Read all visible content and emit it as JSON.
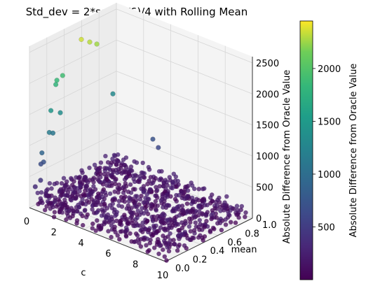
{
  "chart_data": {
    "type": "scatter",
    "subtype": "3d-scatter",
    "title": "Std_dev = 2*sqrt(1/6)/4 with Rolling Mean",
    "xlabel": "c",
    "ylabel": "mean",
    "zlabel": "Absolute Difference from Oracle Value",
    "xlim": [
      0,
      10
    ],
    "ylim": [
      0,
      1
    ],
    "zlim": [
      0,
      2600
    ],
    "x_ticks": [
      "0",
      "2",
      "4",
      "6",
      "8",
      "10"
    ],
    "y_ticks": [
      "0.0",
      "0.2",
      "0.4",
      "0.6",
      "0.8",
      "1.0"
    ],
    "z_ticks": [
      "0",
      "500",
      "1000",
      "1500",
      "2000",
      "2500"
    ],
    "grid": true,
    "colormap": "viridis",
    "colorbar": {
      "label": "Absolute Difference from Oracle Value",
      "min": 0,
      "max": 2450,
      "ticks": [
        "500",
        "1000",
        "1500",
        "2000"
      ]
    },
    "bulk_surface": {
      "description": "dense low-error points over full c x mean domain",
      "x_range": [
        0,
        10
      ],
      "y_range": [
        0,
        1
      ],
      "z_range": [
        0,
        250
      ]
    },
    "outliers": [
      {
        "x": 0.3,
        "y": 0.55,
        "z": 2350
      },
      {
        "x": 0.6,
        "y": 0.6,
        "z": 2300
      },
      {
        "x": 0.8,
        "y": 0.65,
        "z": 2250
      },
      {
        "x": 0.1,
        "y": 0.3,
        "z": 1850
      },
      {
        "x": 0.2,
        "y": 0.35,
        "z": 1900
      },
      {
        "x": 0.15,
        "y": 0.28,
        "z": 1800
      },
      {
        "x": 0.3,
        "y": 0.2,
        "z": 1450
      },
      {
        "x": 0.35,
        "y": 0.3,
        "z": 1350
      },
      {
        "x": 0.7,
        "y": 0.85,
        "z": 1300
      },
      {
        "x": 0.5,
        "y": 0.15,
        "z": 1150
      },
      {
        "x": 0.45,
        "y": 0.2,
        "z": 1100
      },
      {
        "x": 0.6,
        "y": 0.05,
        "z": 900
      },
      {
        "x": 0.4,
        "y": 0.1,
        "z": 700
      },
      {
        "x": 0.2,
        "y": 0.1,
        "z": 650
      },
      {
        "x": 3.0,
        "y": 0.95,
        "z": 700
      },
      {
        "x": 3.4,
        "y": 0.95,
        "z": 600
      },
      {
        "x": 0.5,
        "y": 0.05,
        "z": 450
      },
      {
        "x": 0.3,
        "y": 0.02,
        "z": 350
      }
    ]
  }
}
